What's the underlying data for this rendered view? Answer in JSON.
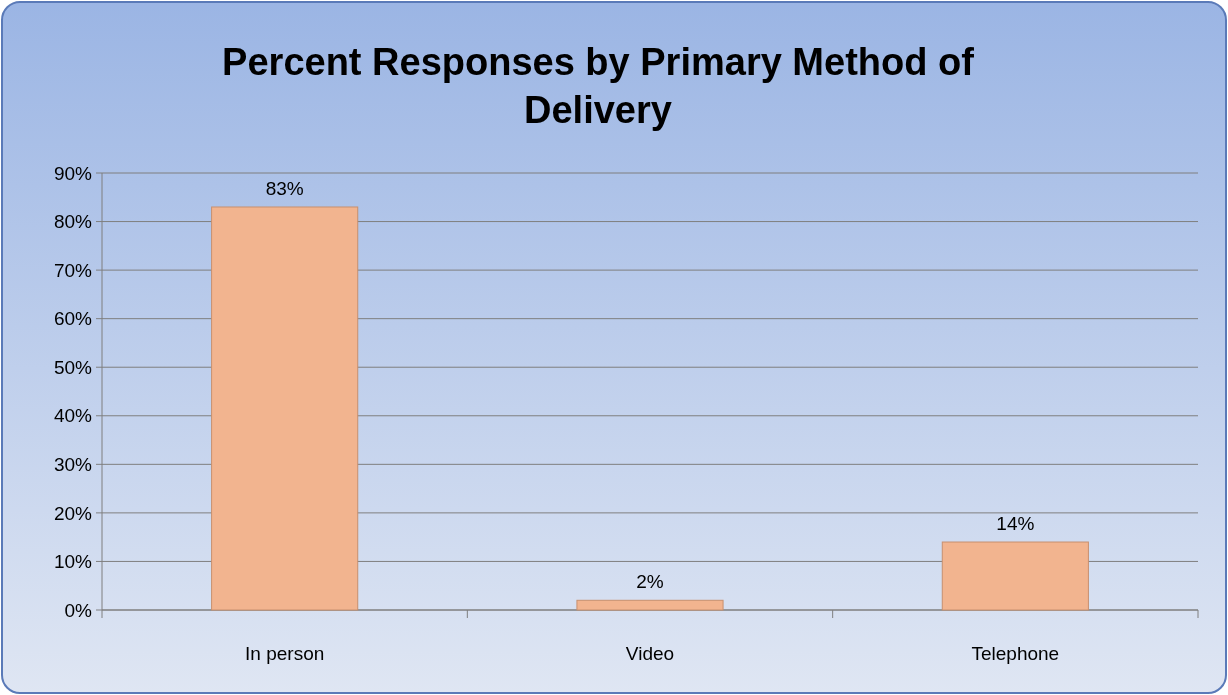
{
  "chart_data": {
    "type": "bar",
    "title": "Percent Responses by Primary Method of Delivery",
    "categories": [
      "In person",
      "Video",
      "Telephone"
    ],
    "values": [
      83,
      2,
      14
    ],
    "value_labels": [
      "83%",
      "2%",
      "14%"
    ],
    "color": "#f2b48f",
    "ylim": [
      0,
      90
    ],
    "yticks": [
      {
        "value": 0,
        "label": "0%"
      },
      {
        "value": 10,
        "label": "10%"
      },
      {
        "value": 20,
        "label": "20%"
      },
      {
        "value": 30,
        "label": "30%"
      },
      {
        "value": 40,
        "label": "40%"
      },
      {
        "value": 50,
        "label": "50%"
      },
      {
        "value": 60,
        "label": "60%"
      },
      {
        "value": 70,
        "label": "70%"
      },
      {
        "value": 80,
        "label": "80%"
      },
      {
        "value": 90,
        "label": "90%"
      }
    ],
    "grid": "y"
  }
}
